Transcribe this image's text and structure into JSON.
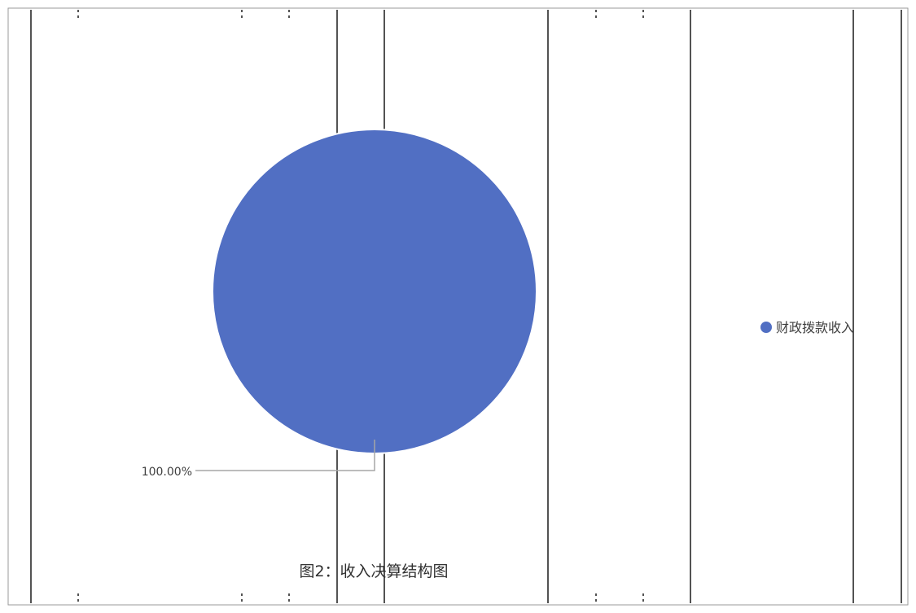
{
  "chart_data": {
    "type": "pie",
    "title": "",
    "caption": "图2：收入决算结构图",
    "legend_position": "right",
    "slices": [
      {
        "name": "财政拨款收入",
        "value": 100.0,
        "label": "100.00%",
        "color": "#516fc3"
      }
    ]
  }
}
